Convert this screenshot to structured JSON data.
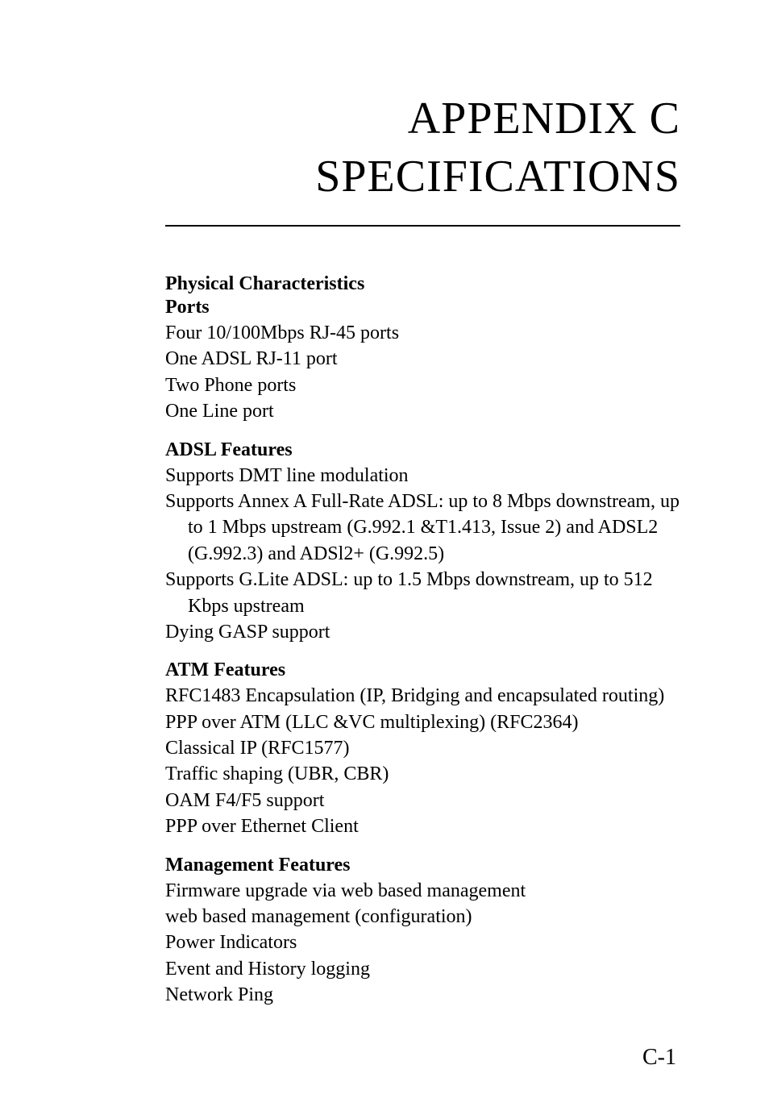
{
  "chapter": {
    "title": "APPENDIX C",
    "subtitle": "SPECIFICATIONS"
  },
  "sections": [
    {
      "heading": "Physical Characteristics",
      "subheading": "Ports",
      "lines": [
        "Four 10/100Mbps RJ-45 ports",
        "One ADSL RJ-11 port",
        "Two Phone ports",
        "One Line port"
      ]
    },
    {
      "subheading": "ADSL Features",
      "lines": [
        "Supports DMT line modulation",
        "Supports Annex A Full-Rate ADSL: up to 8 Mbps downstream, up to 1 Mbps upstream (G.992.1 &T1.413, Issue 2) and ADSL2 (G.992.3) and ADSl2+ (G.992.5)",
        "Supports G.Lite ADSL: up to 1.5 Mbps downstream, up to 512 Kbps upstream",
        "Dying GASP support"
      ]
    },
    {
      "subheading": "ATM Features",
      "lines": [
        "RFC1483 Encapsulation (IP, Bridging and encapsulated routing)",
        "PPP over ATM (LLC &VC multiplexing) (RFC2364)",
        "Classical IP (RFC1577)",
        "Traffic shaping (UBR, CBR)",
        "OAM F4/F5 support",
        "PPP over Ethernet Client"
      ]
    },
    {
      "subheading": "Management Features",
      "lines": [
        "Firmware upgrade via web based management",
        "web based management (configuration)",
        "Power Indicators",
        "Event and History logging",
        "Network Ping"
      ]
    }
  ],
  "page_number": "C-1",
  "colors": {
    "background": "#ffffff",
    "text": "#000000",
    "rule": "#000000"
  },
  "typography": {
    "title_fontsize": 56,
    "heading_fontsize": 24,
    "body_fontsize": 24,
    "page_number_fontsize": 28,
    "font_family": "Garamond, Times New Roman, serif"
  }
}
